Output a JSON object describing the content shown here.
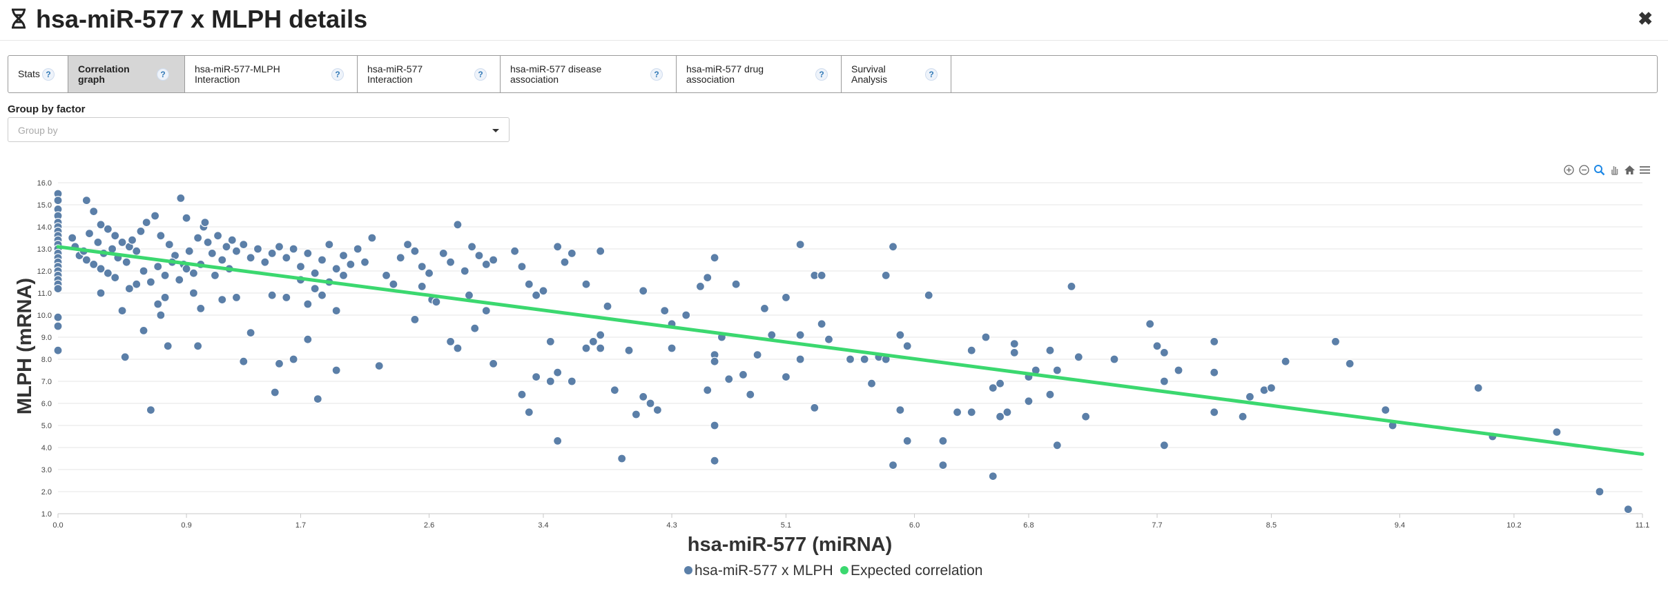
{
  "header": {
    "title": "hsa-miR-577 x MLPH details",
    "close_label": "✖"
  },
  "tabs": [
    {
      "label": "Stats",
      "active": false
    },
    {
      "label": "Correlation graph",
      "active": true
    },
    {
      "label": "hsa-miR-577-MLPH Interaction",
      "active": false
    },
    {
      "label": "hsa-miR-577 Interaction",
      "active": false
    },
    {
      "label": "hsa-miR-577 disease association",
      "active": false
    },
    {
      "label": "hsa-miR-577 drug association",
      "active": false
    },
    {
      "label": "Survival Analysis",
      "active": false
    }
  ],
  "help_mark": "?",
  "group_by": {
    "label": "Group by factor",
    "placeholder": "Group by"
  },
  "toolbar": {
    "icons": [
      "zoom-in-icon",
      "zoom-out-icon",
      "magnify-icon",
      "pan-icon",
      "home-icon",
      "menu-icon"
    ]
  },
  "colors": {
    "point": "#5b7fa8",
    "line": "#3bd86f",
    "grid": "#e6e6e6",
    "active_tab": "#d6d6d6"
  },
  "chart_data": {
    "type": "scatter",
    "title": "",
    "xlabel": "hsa-miR-577 (miRNA)",
    "ylabel": "MLPH (mRNA)",
    "xlim": [
      0.0,
      11.1
    ],
    "ylim": [
      1.0,
      16.0
    ],
    "x_ticks": [
      "0.0",
      "0.9",
      "1.7",
      "2.6",
      "3.4",
      "4.3",
      "5.1",
      "6.0",
      "6.8",
      "7.7",
      "8.5",
      "9.4",
      "10.2",
      "11.1"
    ],
    "y_ticks": [
      "1.0",
      "2.0",
      "3.0",
      "4.0",
      "5.0",
      "6.0",
      "7.0",
      "8.0",
      "9.0",
      "10.0",
      "11.0",
      "12.0",
      "13.0",
      "14.0",
      "15.0",
      "16.0"
    ],
    "legend": {
      "position": "bottom-center",
      "items": [
        "hsa-miR-577 x MLPH",
        "Expected correlation"
      ]
    },
    "series": [
      {
        "name": "hsa-miR-577 x MLPH",
        "type": "scatter",
        "points": [
          [
            0.0,
            15.5
          ],
          [
            0.0,
            15.2
          ],
          [
            0.0,
            14.8
          ],
          [
            0.0,
            14.5
          ],
          [
            0.0,
            14.2
          ],
          [
            0.0,
            14.0
          ],
          [
            0.0,
            13.8
          ],
          [
            0.0,
            13.6
          ],
          [
            0.0,
            13.4
          ],
          [
            0.0,
            13.2
          ],
          [
            0.0,
            13.0
          ],
          [
            0.0,
            12.8
          ],
          [
            0.0,
            12.6
          ],
          [
            0.0,
            12.4
          ],
          [
            0.0,
            12.2
          ],
          [
            0.0,
            12.0
          ],
          [
            0.0,
            11.8
          ],
          [
            0.0,
            11.6
          ],
          [
            0.0,
            11.4
          ],
          [
            0.0,
            11.2
          ],
          [
            0.0,
            9.9
          ],
          [
            0.0,
            9.5
          ],
          [
            0.0,
            8.4
          ],
          [
            0.2,
            15.2
          ],
          [
            0.25,
            14.7
          ],
          [
            0.3,
            14.1
          ],
          [
            0.35,
            13.9
          ],
          [
            0.4,
            13.6
          ],
          [
            0.45,
            13.3
          ],
          [
            0.5,
            13.1
          ],
          [
            0.55,
            12.9
          ],
          [
            0.15,
            12.7
          ],
          [
            0.2,
            12.5
          ],
          [
            0.25,
            12.3
          ],
          [
            0.3,
            12.1
          ],
          [
            0.35,
            11.9
          ],
          [
            0.4,
            11.7
          ],
          [
            0.1,
            13.5
          ],
          [
            0.12,
            13.1
          ],
          [
            0.18,
            12.9
          ],
          [
            0.22,
            13.7
          ],
          [
            0.28,
            13.3
          ],
          [
            0.32,
            12.8
          ],
          [
            0.38,
            13.0
          ],
          [
            0.42,
            12.6
          ],
          [
            0.48,
            12.4
          ],
          [
            0.52,
            13.4
          ],
          [
            0.58,
            13.8
          ],
          [
            0.62,
            14.2
          ],
          [
            0.68,
            14.5
          ],
          [
            0.72,
            13.6
          ],
          [
            0.78,
            13.2
          ],
          [
            0.82,
            12.7
          ],
          [
            0.88,
            12.3
          ],
          [
            0.92,
            12.9
          ],
          [
            0.98,
            13.5
          ],
          [
            1.02,
            14.0
          ],
          [
            1.05,
            13.3
          ],
          [
            1.08,
            12.8
          ],
          [
            1.12,
            13.6
          ],
          [
            1.15,
            12.5
          ],
          [
            1.18,
            13.1
          ],
          [
            1.22,
            13.4
          ],
          [
            1.25,
            12.9
          ],
          [
            1.3,
            13.2
          ],
          [
            1.35,
            12.6
          ],
          [
            1.4,
            13.0
          ],
          [
            1.45,
            12.4
          ],
          [
            1.5,
            12.8
          ],
          [
            1.55,
            13.1
          ],
          [
            0.6,
            12.0
          ],
          [
            0.65,
            11.5
          ],
          [
            0.7,
            12.2
          ],
          [
            0.75,
            11.8
          ],
          [
            0.8,
            12.4
          ],
          [
            0.85,
            11.6
          ],
          [
            0.9,
            12.1
          ],
          [
            0.95,
            11.9
          ],
          [
            1.0,
            12.3
          ],
          [
            1.1,
            11.8
          ],
          [
            1.2,
            12.1
          ],
          [
            0.3,
            11.0
          ],
          [
            0.5,
            11.2
          ],
          [
            0.45,
            10.2
          ],
          [
            0.55,
            11.4
          ],
          [
            0.75,
            10.8
          ],
          [
            0.7,
            10.5
          ],
          [
            0.95,
            11.0
          ],
          [
            1.0,
            10.3
          ],
          [
            1.15,
            10.7
          ],
          [
            1.25,
            10.8
          ],
          [
            0.6,
            9.3
          ],
          [
            0.72,
            10.0
          ],
          [
            0.77,
            8.6
          ],
          [
            0.65,
            5.7
          ],
          [
            0.47,
            8.1
          ],
          [
            0.98,
            8.6
          ],
          [
            0.86,
            15.3
          ],
          [
            0.9,
            14.4
          ],
          [
            1.03,
            14.2
          ],
          [
            1.6,
            12.6
          ],
          [
            1.65,
            13.0
          ],
          [
            1.7,
            12.2
          ],
          [
            1.75,
            12.8
          ],
          [
            1.8,
            11.9
          ],
          [
            1.85,
            12.5
          ],
          [
            1.9,
            13.2
          ],
          [
            1.95,
            12.1
          ],
          [
            2.0,
            12.7
          ],
          [
            2.05,
            12.3
          ],
          [
            2.1,
            13.0
          ],
          [
            2.15,
            12.4
          ],
          [
            1.7,
            11.6
          ],
          [
            1.8,
            11.2
          ],
          [
            1.9,
            11.5
          ],
          [
            2.0,
            11.8
          ],
          [
            1.75,
            10.5
          ],
          [
            1.85,
            10.9
          ],
          [
            1.95,
            10.2
          ],
          [
            1.6,
            10.8
          ],
          [
            1.5,
            10.9
          ],
          [
            1.35,
            9.2
          ],
          [
            1.3,
            7.9
          ],
          [
            1.55,
            7.8
          ],
          [
            1.65,
            8.0
          ],
          [
            1.75,
            8.9
          ],
          [
            1.95,
            7.5
          ],
          [
            1.52,
            6.5
          ],
          [
            1.82,
            6.2
          ],
          [
            2.2,
            13.5
          ],
          [
            2.3,
            11.8
          ],
          [
            2.4,
            12.6
          ],
          [
            2.45,
            13.2
          ],
          [
            2.5,
            12.9
          ],
          [
            2.55,
            12.2
          ],
          [
            2.6,
            11.9
          ],
          [
            2.7,
            12.8
          ],
          [
            2.75,
            12.4
          ],
          [
            2.8,
            14.1
          ],
          [
            2.9,
            13.1
          ],
          [
            2.95,
            12.7
          ],
          [
            3.0,
            12.3
          ],
          [
            3.05,
            12.5
          ],
          [
            2.35,
            11.4
          ],
          [
            2.5,
            9.8
          ],
          [
            2.62,
            10.7
          ],
          [
            2.75,
            8.8
          ],
          [
            2.8,
            8.5
          ],
          [
            2.88,
            10.9
          ],
          [
            2.92,
            9.4
          ],
          [
            3.0,
            10.2
          ],
          [
            2.25,
            7.7
          ],
          [
            3.05,
            7.8
          ],
          [
            2.85,
            12.0
          ],
          [
            2.65,
            10.6
          ],
          [
            2.55,
            11.3
          ],
          [
            3.2,
            12.9
          ],
          [
            3.25,
            12.2
          ],
          [
            3.3,
            11.4
          ],
          [
            3.35,
            10.9
          ],
          [
            3.4,
            11.1
          ],
          [
            3.5,
            13.1
          ],
          [
            3.55,
            12.4
          ],
          [
            3.6,
            12.8
          ],
          [
            3.7,
            11.4
          ],
          [
            3.8,
            12.9
          ],
          [
            3.85,
            10.4
          ],
          [
            3.7,
            8.5
          ],
          [
            3.75,
            8.8
          ],
          [
            3.45,
            8.8
          ],
          [
            3.35,
            7.2
          ],
          [
            3.45,
            7.0
          ],
          [
            3.5,
            7.4
          ],
          [
            3.6,
            7.0
          ],
          [
            3.25,
            6.4
          ],
          [
            3.3,
            5.6
          ],
          [
            3.5,
            4.3
          ],
          [
            3.95,
            3.5
          ],
          [
            3.9,
            6.6
          ],
          [
            3.8,
            9.1
          ],
          [
            3.8,
            8.5
          ],
          [
            4.0,
            8.4
          ],
          [
            4.1,
            11.1
          ],
          [
            4.1,
            6.3
          ],
          [
            4.15,
            6.0
          ],
          [
            4.2,
            5.7
          ],
          [
            4.05,
            5.5
          ],
          [
            4.25,
            10.2
          ],
          [
            4.3,
            9.6
          ],
          [
            4.3,
            8.5
          ],
          [
            4.4,
            10.0
          ],
          [
            4.5,
            11.3
          ],
          [
            4.55,
            11.7
          ],
          [
            4.6,
            12.6
          ],
          [
            4.6,
            8.2
          ],
          [
            4.65,
            9.0
          ],
          [
            4.6,
            7.9
          ],
          [
            4.7,
            7.1
          ],
          [
            4.75,
            11.4
          ],
          [
            4.8,
            7.3
          ],
          [
            4.85,
            6.4
          ],
          [
            4.9,
            8.2
          ],
          [
            4.95,
            10.3
          ],
          [
            5.0,
            9.1
          ],
          [
            4.6,
            3.4
          ],
          [
            4.6,
            5.0
          ],
          [
            4.55,
            6.6
          ],
          [
            5.2,
            13.2
          ],
          [
            5.3,
            11.8
          ],
          [
            5.35,
            11.8
          ],
          [
            5.1,
            10.8
          ],
          [
            5.2,
            9.1
          ],
          [
            5.35,
            9.6
          ],
          [
            5.4,
            8.9
          ],
          [
            5.1,
            7.2
          ],
          [
            5.2,
            8.0
          ],
          [
            5.3,
            5.8
          ],
          [
            5.55,
            8.0
          ],
          [
            5.65,
            8.0
          ],
          [
            5.7,
            6.9
          ],
          [
            5.75,
            8.1
          ],
          [
            5.8,
            8.0
          ],
          [
            5.8,
            11.8
          ],
          [
            5.85,
            13.1
          ],
          [
            5.9,
            9.1
          ],
          [
            5.95,
            8.6
          ],
          [
            5.95,
            4.3
          ],
          [
            5.85,
            3.2
          ],
          [
            5.9,
            5.7
          ],
          [
            6.1,
            10.9
          ],
          [
            6.2,
            4.3
          ],
          [
            6.2,
            3.2
          ],
          [
            6.3,
            5.6
          ],
          [
            6.4,
            5.6
          ],
          [
            6.4,
            8.4
          ],
          [
            6.5,
            9.0
          ],
          [
            6.55,
            6.7
          ],
          [
            6.6,
            6.9
          ],
          [
            6.65,
            5.6
          ],
          [
            6.7,
            8.7
          ],
          [
            6.7,
            8.3
          ],
          [
            6.8,
            7.2
          ],
          [
            6.55,
            2.7
          ],
          [
            6.6,
            5.4
          ],
          [
            6.8,
            6.1
          ],
          [
            6.85,
            7.5
          ],
          [
            6.95,
            6.4
          ],
          [
            6.95,
            8.4
          ],
          [
            7.0,
            7.5
          ],
          [
            7.1,
            11.3
          ],
          [
            7.15,
            8.1
          ],
          [
            7.2,
            5.4
          ],
          [
            7.0,
            4.1
          ],
          [
            7.4,
            8.0
          ],
          [
            7.65,
            9.6
          ],
          [
            7.7,
            8.6
          ],
          [
            7.75,
            8.3
          ],
          [
            7.75,
            7.0
          ],
          [
            7.85,
            7.5
          ],
          [
            7.75,
            4.1
          ],
          [
            8.1,
            8.8
          ],
          [
            8.1,
            7.4
          ],
          [
            8.1,
            5.6
          ],
          [
            8.3,
            5.4
          ],
          [
            8.35,
            6.3
          ],
          [
            8.45,
            6.6
          ],
          [
            8.5,
            6.7
          ],
          [
            8.6,
            7.9
          ],
          [
            8.95,
            8.8
          ],
          [
            9.05,
            7.8
          ],
          [
            9.3,
            5.7
          ],
          [
            9.35,
            5.0
          ],
          [
            9.95,
            6.7
          ],
          [
            10.05,
            4.5
          ],
          [
            10.5,
            4.7
          ],
          [
            10.8,
            2.0
          ],
          [
            11.0,
            1.2
          ]
        ]
      },
      {
        "name": "Expected correlation",
        "type": "line",
        "x": [
          0.0,
          11.1
        ],
        "y": [
          13.1,
          3.7
        ]
      }
    ]
  }
}
